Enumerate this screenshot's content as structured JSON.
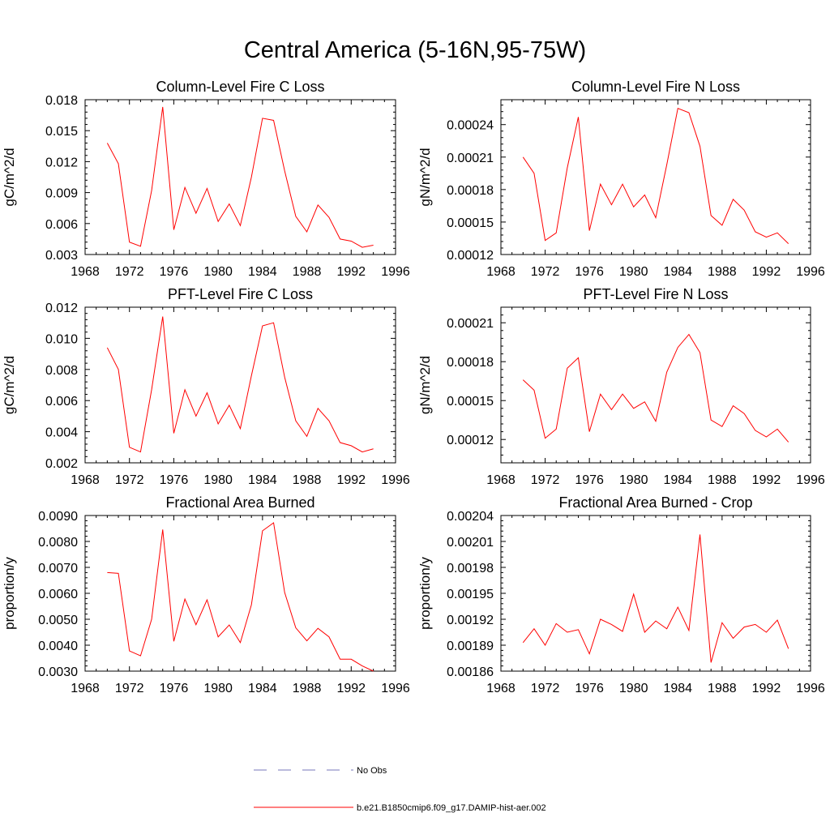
{
  "page_title": "Central America (5-16N,95-75W)",
  "colors": {
    "series": "#ff0000",
    "obs": "#7777bb",
    "axis": "#000000"
  },
  "legend": {
    "obs_label": "No Obs",
    "model_label": "b.e21.B1850cmip6.f09_g17.DAMIP-hist-aer.002"
  },
  "chart_data": [
    {
      "type": "line",
      "title": "Column-Level Fire C Loss",
      "ylabel": "gC/m^2/d",
      "xlim": [
        1968,
        1996
      ],
      "ylim": [
        0.003,
        0.018
      ],
      "xticks": [
        1968,
        1972,
        1976,
        1980,
        1984,
        1988,
        1992,
        1996
      ],
      "yticks": [
        "0.003",
        "0.006",
        "0.009",
        "0.012",
        "0.015",
        "0.018"
      ],
      "grid": false,
      "x": [
        1970,
        1971,
        1972,
        1973,
        1974,
        1975,
        1976,
        1977,
        1978,
        1979,
        1980,
        1981,
        1982,
        1983,
        1984,
        1985,
        1986,
        1987,
        1988,
        1989,
        1990,
        1991,
        1992,
        1993,
        1994
      ],
      "series": [
        {
          "values": [
            0.0138,
            0.0118,
            0.0042,
            0.0038,
            0.0092,
            0.0173,
            0.0054,
            0.0095,
            0.007,
            0.0094,
            0.0062,
            0.0079,
            0.0058,
            0.0105,
            0.0162,
            0.016,
            0.0111,
            0.0067,
            0.0052,
            0.0078,
            0.0066,
            0.0045,
            0.0043,
            0.0037,
            0.0039
          ]
        }
      ]
    },
    {
      "type": "line",
      "title": "Column-Level Fire N Loss",
      "ylabel": "gN/m^2/d",
      "xlim": [
        1968,
        1996
      ],
      "ylim": [
        0.00012,
        0.000263
      ],
      "xticks": [
        1968,
        1972,
        1976,
        1980,
        1984,
        1988,
        1992,
        1996
      ],
      "yticks": [
        "0.00012",
        "0.00015",
        "0.00018",
        "0.00021",
        "0.00024"
      ],
      "grid": false,
      "x": [
        1970,
        1971,
        1972,
        1973,
        1974,
        1975,
        1976,
        1977,
        1978,
        1979,
        1980,
        1981,
        1982,
        1983,
        1984,
        1985,
        1986,
        1987,
        1988,
        1989,
        1990,
        1991,
        1992,
        1993,
        1994
      ],
      "series": [
        {
          "values": [
            0.00021,
            0.000195,
            0.000133,
            0.00014,
            0.0002,
            0.000247,
            0.000142,
            0.000185,
            0.000166,
            0.000185,
            0.000164,
            0.000175,
            0.000154,
            0.000203,
            0.000255,
            0.000251,
            0.00022,
            0.000156,
            0.000147,
            0.000171,
            0.000161,
            0.000141,
            0.000136,
            0.00014,
            0.00013
          ]
        }
      ]
    },
    {
      "type": "line",
      "title": "PFT-Level Fire C Loss",
      "ylabel": "gC/m^2/d",
      "xlim": [
        1968,
        1996
      ],
      "ylim": [
        0.002,
        0.012
      ],
      "xticks": [
        1968,
        1972,
        1976,
        1980,
        1984,
        1988,
        1992,
        1996
      ],
      "yticks": [
        "0.002",
        "0.004",
        "0.006",
        "0.008",
        "0.010",
        "0.012"
      ],
      "grid": false,
      "x": [
        1970,
        1971,
        1972,
        1973,
        1974,
        1975,
        1976,
        1977,
        1978,
        1979,
        1980,
        1981,
        1982,
        1983,
        1984,
        1985,
        1986,
        1987,
        1988,
        1989,
        1990,
        1991,
        1992,
        1993,
        1994
      ],
      "series": [
        {
          "values": [
            0.0094,
            0.008,
            0.003,
            0.0027,
            0.0067,
            0.0114,
            0.0039,
            0.0067,
            0.005,
            0.0065,
            0.0045,
            0.0057,
            0.0042,
            0.0076,
            0.0108,
            0.011,
            0.0075,
            0.0047,
            0.0037,
            0.0055,
            0.0047,
            0.0033,
            0.0031,
            0.0027,
            0.0029
          ]
        }
      ]
    },
    {
      "type": "line",
      "title": "PFT-Level Fire N Loss",
      "ylabel": "gN/m^2/d",
      "xlim": [
        1968,
        1996
      ],
      "ylim": [
        0.000102,
        0.000222
      ],
      "xticks": [
        1968,
        1972,
        1976,
        1980,
        1984,
        1988,
        1992,
        1996
      ],
      "yticks": [
        "0.00012",
        "0.00015",
        "0.00018",
        "0.00021"
      ],
      "grid": false,
      "x": [
        1970,
        1971,
        1972,
        1973,
        1974,
        1975,
        1976,
        1977,
        1978,
        1979,
        1980,
        1981,
        1982,
        1983,
        1984,
        1985,
        1986,
        1987,
        1988,
        1989,
        1990,
        1991,
        1992,
        1993,
        1994
      ],
      "series": [
        {
          "values": [
            0.000166,
            0.000158,
            0.000121,
            0.000128,
            0.000175,
            0.000183,
            0.000126,
            0.000155,
            0.000143,
            0.000155,
            0.000144,
            0.000149,
            0.000134,
            0.000172,
            0.000191,
            0.000201,
            0.000187,
            0.000135,
            0.00013,
            0.000146,
            0.00014,
            0.000127,
            0.000122,
            0.000128,
            0.000118
          ]
        }
      ]
    },
    {
      "type": "line",
      "title": "Fractional Area Burned",
      "ylabel": "proportion/y",
      "xlim": [
        1968,
        1996
      ],
      "ylim": [
        0.003,
        0.009
      ],
      "xticks": [
        1968,
        1972,
        1976,
        1980,
        1984,
        1988,
        1992,
        1996
      ],
      "yticks": [
        "0.0030",
        "0.0040",
        "0.0050",
        "0.0060",
        "0.0070",
        "0.0080",
        "0.0090"
      ],
      "grid": false,
      "x": [
        1970,
        1971,
        1972,
        1973,
        1974,
        1975,
        1976,
        1977,
        1978,
        1979,
        1980,
        1981,
        1982,
        1983,
        1984,
        1985,
        1986,
        1987,
        1988,
        1989,
        1990,
        1991,
        1992,
        1993,
        1994
      ],
      "series": [
        {
          "values": [
            0.0068,
            0.00677,
            0.00378,
            0.00359,
            0.005,
            0.00846,
            0.00415,
            0.00578,
            0.00479,
            0.00575,
            0.00432,
            0.00478,
            0.0041,
            0.00556,
            0.00841,
            0.00872,
            0.00603,
            0.00467,
            0.00417,
            0.00465,
            0.00432,
            0.00346,
            0.00346,
            0.0032,
            0.003
          ]
        }
      ]
    },
    {
      "type": "line",
      "title": "Fractional Area Burned - Crop",
      "ylabel": "proportion/y",
      "xlim": [
        1968,
        1996
      ],
      "ylim": [
        0.00186,
        0.00204
      ],
      "xticks": [
        1968,
        1972,
        1976,
        1980,
        1984,
        1988,
        1992,
        1996
      ],
      "yticks": [
        "0.00186",
        "0.00189",
        "0.00192",
        "0.00195",
        "0.00198",
        "0.00201",
        "0.00204"
      ],
      "grid": false,
      "x": [
        1970,
        1971,
        1972,
        1973,
        1974,
        1975,
        1976,
        1977,
        1978,
        1979,
        1980,
        1981,
        1982,
        1983,
        1984,
        1985,
        1986,
        1987,
        1988,
        1989,
        1990,
        1991,
        1992,
        1993,
        1994
      ],
      "series": [
        {
          "values": [
            0.001893,
            0.001909,
            0.00189,
            0.001915,
            0.001905,
            0.001908,
            0.00188,
            0.00192,
            0.001914,
            0.001906,
            0.001949,
            0.001905,
            0.001918,
            0.001909,
            0.001934,
            0.001907,
            0.002018,
            0.00187,
            0.001916,
            0.001898,
            0.001911,
            0.001914,
            0.001905,
            0.001919,
            0.001886
          ]
        }
      ]
    }
  ]
}
